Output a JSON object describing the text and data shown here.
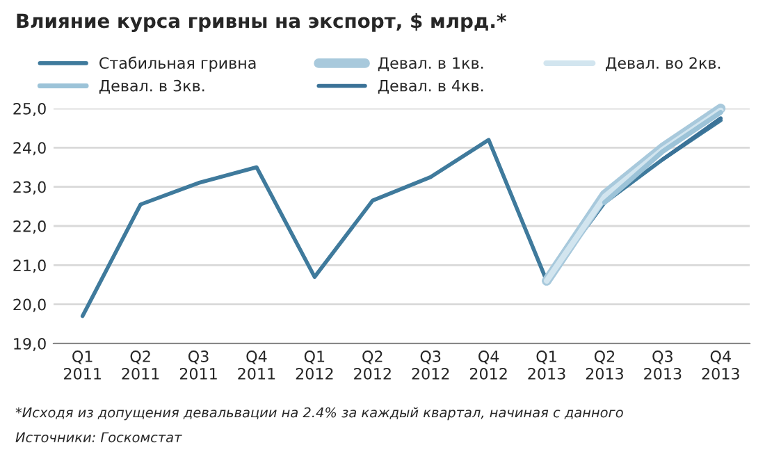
{
  "chart_data": {
    "type": "line",
    "title": "Влияние курса гривны на экспорт, $ млрд.*",
    "categories": [
      "Q1\n2011",
      "Q2\n2011",
      "Q3\n2011",
      "Q4\n2011",
      "Q1\n2012",
      "Q2\n2012",
      "Q3\n2012",
      "Q4\n2012",
      "Q1\n2013",
      "Q2\n2013",
      "Q3\n2013",
      "Q4\n2013"
    ],
    "series": [
      {
        "name": "Стабильная гривна",
        "color": "#3f7a9c",
        "values": [
          19.7,
          22.55,
          23.1,
          23.5,
          20.7,
          22.65,
          23.25,
          24.2,
          20.6,
          22.6,
          23.7,
          24.7
        ]
      },
      {
        "name": "Девал. в 1кв.",
        "color": "#a8c9dc",
        "values": [
          null,
          null,
          null,
          null,
          null,
          null,
          null,
          null,
          20.6,
          22.8,
          24.0,
          25.0
        ]
      },
      {
        "name": "Девал. во 2кв.",
        "color": "#d2e5ef",
        "values": [
          null,
          null,
          null,
          null,
          null,
          null,
          null,
          null,
          20.6,
          22.75,
          23.95,
          24.95
        ]
      },
      {
        "name": "Девал. в 3кв.",
        "color": "#9cc3d8",
        "values": [
          null,
          null,
          null,
          null,
          null,
          null,
          null,
          null,
          null,
          22.6,
          23.9,
          24.9
        ]
      },
      {
        "name": "Девал. в 4кв.",
        "color": "#3a7297",
        "values": [
          null,
          null,
          null,
          null,
          null,
          null,
          null,
          null,
          null,
          null,
          23.7,
          24.75
        ]
      }
    ],
    "ylim": [
      19.0,
      25.0
    ],
    "yticks": [
      {
        "value": 19,
        "label": "19,0"
      },
      {
        "value": 20,
        "label": "20,0"
      },
      {
        "value": 21,
        "label": "21,0"
      },
      {
        "value": 22,
        "label": "22,0"
      },
      {
        "value": 23,
        "label": "23,0"
      },
      {
        "value": 24,
        "label": "24,0"
      },
      {
        "value": 25,
        "label": "25,0"
      }
    ],
    "grid": "y",
    "legend": "top",
    "marker": "none",
    "line_style": "solid",
    "annotations": [
      "*Исходя из допущения девальвации на 2.4% за каждый квартал, начиная с данного",
      "Источники: Госкомстат"
    ]
  }
}
